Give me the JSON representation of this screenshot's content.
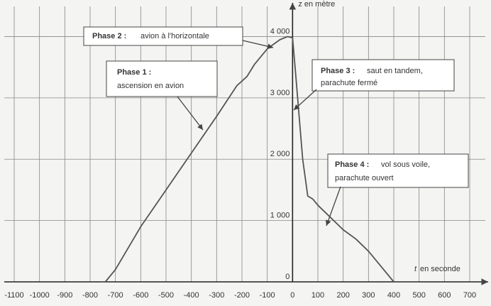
{
  "chart_data": {
    "type": "line",
    "x_label": "en seconde",
    "x_label_var": "t",
    "y_label": "z en mètre",
    "xlim": [
      -1100,
      700
    ],
    "ylim": [
      0,
      4400
    ],
    "xticks": [
      -1100,
      -1000,
      -900,
      -800,
      -700,
      -600,
      -500,
      -400,
      -300,
      -200,
      -100,
      0,
      100,
      200,
      300,
      400,
      500,
      600,
      700
    ],
    "yticks": [
      0,
      {
        "value": 1000,
        "label": "1 000"
      },
      {
        "value": 2000,
        "label": "2 000"
      },
      {
        "value": 3000,
        "label": "3 000"
      },
      {
        "value": 4000,
        "label": "4 000"
      }
    ],
    "grid": true,
    "series": [
      {
        "color": "#555555",
        "x": [
          -760,
          -740,
          -700,
          -600,
          -500,
          -400,
          -300,
          -220,
          -180,
          -150,
          -100,
          -50,
          -20,
          0,
          10,
          20,
          40,
          60,
          80,
          100,
          150,
          200,
          250,
          300,
          350,
          400,
          450,
          500
        ],
        "values": [
          0,
          0,
          200,
          900,
          1500,
          2100,
          2700,
          3200,
          3350,
          3550,
          3800,
          3950,
          4000,
          3980,
          3500,
          3000,
          2000,
          1400,
          1350,
          1250,
          1050,
          850,
          700,
          500,
          250,
          0,
          0,
          0
        ]
      }
    ],
    "annotations": [
      {
        "title": "Phase 1 :",
        "lines": [
          "ascension en avion"
        ]
      },
      {
        "title": "Phase 2 :",
        "lines": [
          "avion à l'horizontale"
        ]
      },
      {
        "title": "Phase 3 :",
        "lines": [
          "saut en tandem,",
          "parachute fermé"
        ]
      },
      {
        "title": "Phase 4 :",
        "lines": [
          "vol sous voile,",
          "parachute ouvert"
        ]
      }
    ]
  }
}
